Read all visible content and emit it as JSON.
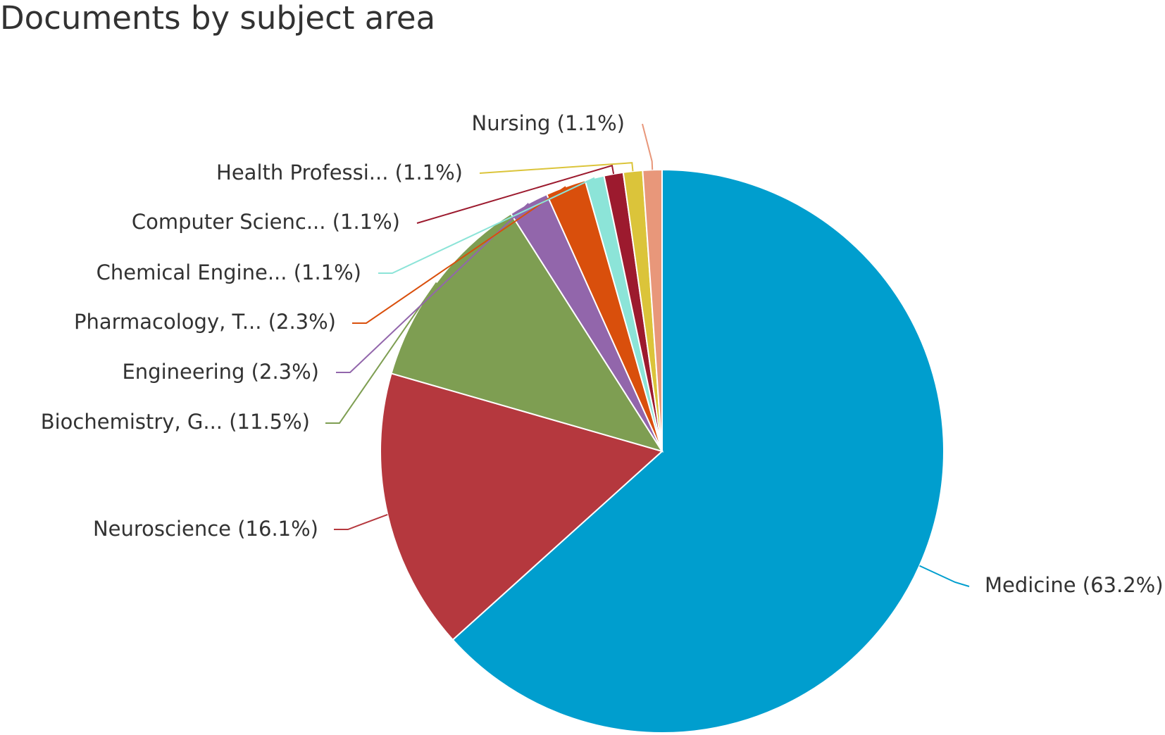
{
  "chart_data": {
    "type": "pie",
    "title": "Documents by subject area",
    "start_angle_deg": 0,
    "direction": "clockwise",
    "slices": [
      {
        "label": "Medicine (63.2%)",
        "category": "Medicine",
        "value": 63.2,
        "color": "#009ECE"
      },
      {
        "label": "Neuroscience (16.1%)",
        "category": "Neuroscience",
        "value": 16.1,
        "color": "#B5383E"
      },
      {
        "label": "Biochemistry, G... (11.5%)",
        "category": "Biochemistry, G...",
        "value": 11.5,
        "color": "#7E9E52"
      },
      {
        "label": "Engineering (2.3%)",
        "category": "Engineering",
        "value": 2.3,
        "color": "#9266AB"
      },
      {
        "label": "Pharmacology, T... (2.3%)",
        "category": "Pharmacology, T...",
        "value": 2.3,
        "color": "#D94F0C"
      },
      {
        "label": "Chemical Engine... (1.1%)",
        "category": "Chemical Engine...",
        "value": 1.1,
        "color": "#8CE4D8"
      },
      {
        "label": "Computer Scienc... (1.1%)",
        "category": "Computer Scienc...",
        "value": 1.1,
        "color": "#9C1A2E"
      },
      {
        "label": "Health Professi... (1.1%)",
        "category": "Health Professi...",
        "value": 1.1,
        "color": "#DBC43A"
      },
      {
        "label": "Nursing (1.1%)",
        "category": "Nursing",
        "value": 1.1,
        "color": "#E8977A"
      }
    ]
  }
}
